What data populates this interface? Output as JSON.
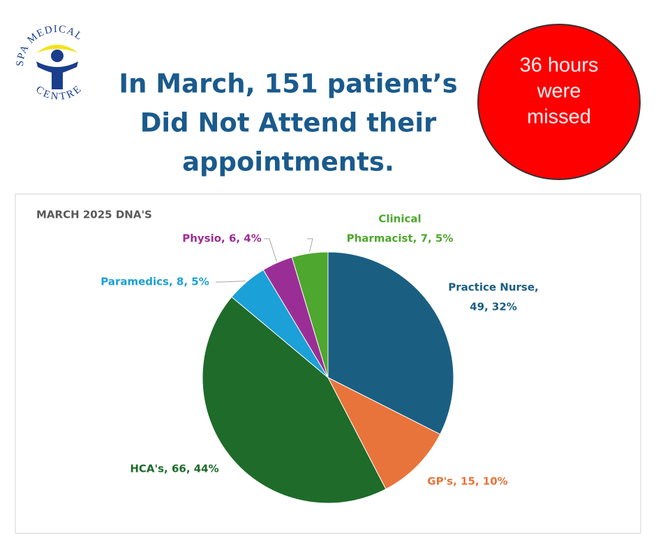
{
  "logo": {
    "top": "SPA MEDICAL",
    "bottom": "CENTRE"
  },
  "header": {
    "title_lines": [
      "In March, 151 patient’s",
      "Did Not Attend their",
      "appointments."
    ],
    "badge_lines": [
      "36 hours",
      "were",
      "missed"
    ]
  },
  "chart_data": {
    "type": "pie",
    "title": "MARCH 2025 DNA'S",
    "values": [
      49,
      15,
      66,
      8,
      6,
      7
    ],
    "value_labels": [
      [
        "Practice Nurse,",
        "49, 32%"
      ],
      [
        "GP's, 15, 10%"
      ],
      [
        "HCA's, 66, 44%"
      ],
      [
        "Paramedics, 8, 5%"
      ],
      [
        "Physio, 6, 4%"
      ],
      [
        "Clinical",
        "Pharmacist, 7, 5%"
      ]
    ],
    "colors": [
      "#1a5e82",
      "#e8743b",
      "#1e6b2a",
      "#1ba0d8",
      "#9b2e96",
      "#4ea72e"
    ],
    "start_angle": 0,
    "direction": "clockwise"
  }
}
